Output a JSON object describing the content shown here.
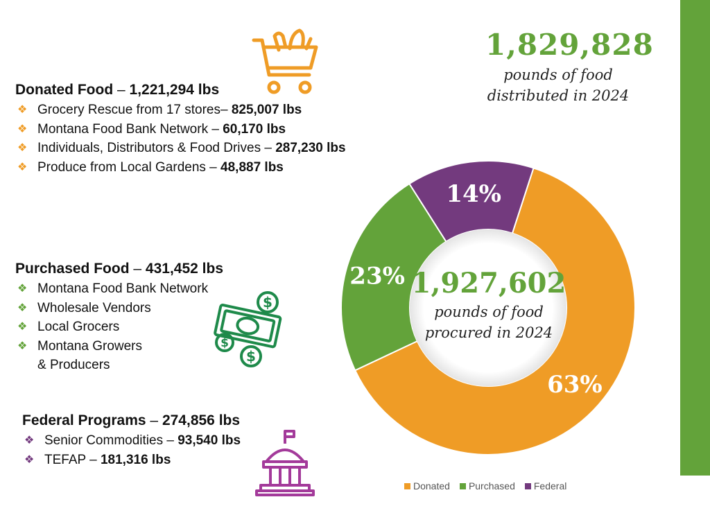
{
  "distributed": {
    "number": "1,829,828",
    "line1": "pounds of food",
    "line2": "distributed in 2024"
  },
  "donated": {
    "title": "Donated Food",
    "dash": "–",
    "total": "1,221,294 lbs",
    "items": [
      {
        "text": "Grocery Rescue from 17 stores– ",
        "amount": "825,007 lbs"
      },
      {
        "text": "Montana Food Bank Network – ",
        "amount": "60,170 lbs"
      },
      {
        "text": "Individuals, Distributors & Food Drives – ",
        "amount": "287,230 lbs"
      },
      {
        "text": "Produce from Local Gardens – ",
        "amount": "48,887 lbs"
      }
    ]
  },
  "purchased": {
    "title": "Purchased Food",
    "dash": "–",
    "total": "431,452 lbs",
    "items": [
      {
        "text": "Montana Food Bank Network"
      },
      {
        "text": "Wholesale Vendors"
      },
      {
        "text": "Local Grocers"
      },
      {
        "text": "Montana Growers",
        "text2": "& Producers"
      }
    ]
  },
  "federal": {
    "title": "Federal Programs",
    "dash": "–",
    "total": "274,856 lbs",
    "items": [
      {
        "text": "Senior Commodities – ",
        "amount": "93,540 lbs"
      },
      {
        "text": "TEFAP – ",
        "amount": "181,316 lbs"
      }
    ]
  },
  "icons": [
    "shopping-cart-icon",
    "money-icon",
    "capitol-building-icon"
  ],
  "bullet_glyph": "❖",
  "chart_data": {
    "type": "pie",
    "variant": "donut",
    "categories": [
      "Donated",
      "Purchased",
      "Federal"
    ],
    "values": [
      63,
      23,
      14
    ],
    "labels": [
      "63%",
      "23%",
      "14%"
    ],
    "colors": [
      "#ef9c26",
      "#63a33a",
      "#733a7e"
    ],
    "center_number": "1,927,602",
    "center_line1": "pounds of food",
    "center_line2": "procured in 2024",
    "legend_position": "bottom"
  },
  "colors": {
    "green": "#63a33a",
    "orange": "#ef9c26",
    "purple": "#733a7e"
  }
}
